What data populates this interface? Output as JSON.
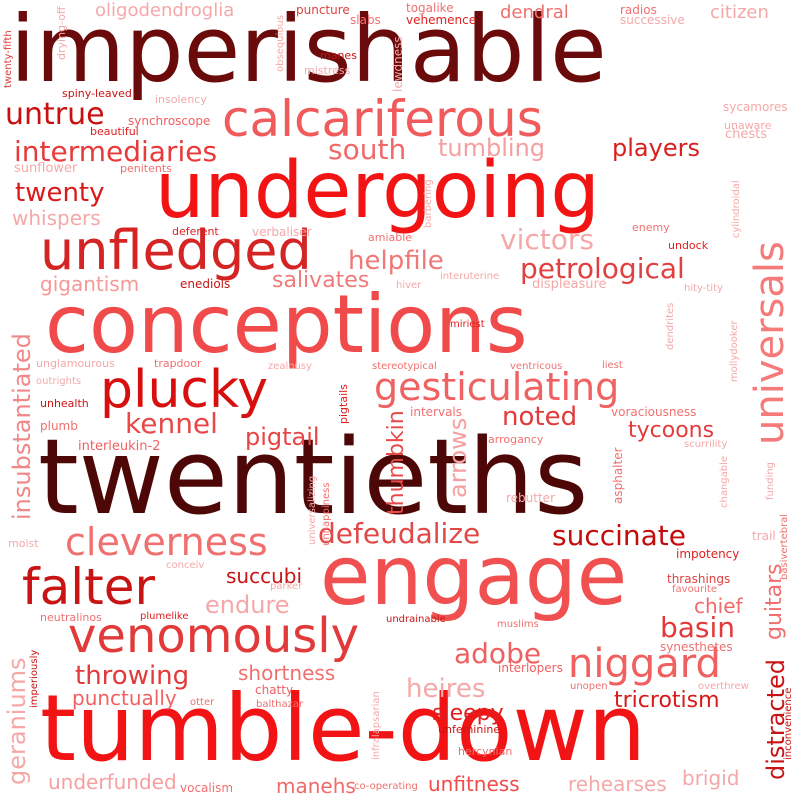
{
  "words": [
    {
      "text": "imperishable",
      "color": "#6b0a0a"
    },
    {
      "text": "twentieths",
      "color": "#4d0707"
    },
    {
      "text": "conceptions",
      "color": "#f04a4a"
    },
    {
      "text": "tumble-down",
      "color": "#f21414"
    },
    {
      "text": "undergoing",
      "color": "#f21414"
    },
    {
      "text": "engage",
      "color": "#f05050"
    },
    {
      "text": "calcariferous",
      "color": "#f05a5a"
    },
    {
      "text": "unfledged",
      "color": "#d42424"
    },
    {
      "text": "plucky",
      "color": "#d80f0f"
    },
    {
      "text": "gesticulating",
      "color": "#f06262"
    },
    {
      "text": "universals",
      "color": "#f57a7a"
    },
    {
      "text": "venomously",
      "color": "#e23a3a"
    },
    {
      "text": "niggard",
      "color": "#f06060"
    },
    {
      "text": "falter",
      "color": "#c81414"
    },
    {
      "text": "cleverness",
      "color": "#f07070"
    },
    {
      "text": "defeudalize",
      "color": "#e24848"
    },
    {
      "text": "succinate",
      "color": "#c40c0c"
    },
    {
      "text": "insubstantiated",
      "color": "#f08888"
    },
    {
      "text": "petrological",
      "color": "#e04040"
    },
    {
      "text": "intermediaries",
      "color": "#e83a3a"
    },
    {
      "text": "untrue",
      "color": "#c81010"
    },
    {
      "text": "south",
      "color": "#f06a6a"
    },
    {
      "text": "tumbling",
      "color": "#f5a0a0"
    },
    {
      "text": "players",
      "color": "#d82020"
    },
    {
      "text": "twenty",
      "color": "#d81a1a"
    },
    {
      "text": "whispers",
      "color": "#f5a8a8"
    },
    {
      "text": "helpfile",
      "color": "#f07878"
    },
    {
      "text": "victors",
      "color": "#f5a8a8"
    },
    {
      "text": "salivates",
      "color": "#f07a7a"
    },
    {
      "text": "gigantism",
      "color": "#f59898"
    },
    {
      "text": "kennel",
      "color": "#e84848"
    },
    {
      "text": "noted",
      "color": "#e23a3a"
    },
    {
      "text": "pigtail",
      "color": "#e84444"
    },
    {
      "text": "tycoons",
      "color": "#e23c3c"
    },
    {
      "text": "arrows",
      "color": "#f5a0a0"
    },
    {
      "text": "thumbkin",
      "color": "#e84a4a"
    },
    {
      "text": "guitars",
      "color": "#f07070"
    },
    {
      "text": "distracted",
      "color": "#c81414"
    },
    {
      "text": "geraniums",
      "color": "#f5a8a8"
    },
    {
      "text": "throwing",
      "color": "#e23a3a"
    },
    {
      "text": "shortness",
      "color": "#f07070"
    },
    {
      "text": "heires",
      "color": "#f5a8a8"
    },
    {
      "text": "adobe",
      "color": "#f06060"
    },
    {
      "text": "basin",
      "color": "#e23a3a"
    },
    {
      "text": "chief",
      "color": "#f06a6a"
    },
    {
      "text": "endure",
      "color": "#f5a8a8"
    },
    {
      "text": "succubi",
      "color": "#c81414"
    },
    {
      "text": "sleepy",
      "color": "#e02020"
    },
    {
      "text": "tricrotism",
      "color": "#d81a1a"
    },
    {
      "text": "punctually",
      "color": "#f06262"
    },
    {
      "text": "underfunded",
      "color": "#f5a0a0"
    },
    {
      "text": "manehs",
      "color": "#f06a6a"
    },
    {
      "text": "unfitness",
      "color": "#f04a4a"
    },
    {
      "text": "rehearses",
      "color": "#f5a8a8"
    },
    {
      "text": "brigid",
      "color": "#f5a8a8"
    },
    {
      "text": "oligodendroglia",
      "color": "#f5a8a8"
    },
    {
      "text": "dendral",
      "color": "#f07070"
    },
    {
      "text": "citizen",
      "color": "#f5a8a8"
    },
    {
      "text": "drying-off",
      "color": "#f5a8a8"
    },
    {
      "text": "twenty-fifth",
      "color": "#e04040"
    },
    {
      "text": "puncture",
      "color": "#e04040"
    },
    {
      "text": "slabs",
      "color": "#f07070"
    },
    {
      "text": "togalike",
      "color": "#f07070"
    },
    {
      "text": "vehemence",
      "color": "#e02020"
    },
    {
      "text": "radios",
      "color": "#f07070"
    },
    {
      "text": "successive",
      "color": "#f5a8a8"
    },
    {
      "text": "lewdness",
      "color": "#f5a8a8"
    },
    {
      "text": "obsequious",
      "color": "#f5a8a8"
    },
    {
      "text": "manes",
      "color": "#c81414"
    },
    {
      "text": "mistress",
      "color": "#f5a8a8"
    },
    {
      "text": "spiny-leaved",
      "color": "#c81414"
    },
    {
      "text": "insolency",
      "color": "#f5a8a8"
    },
    {
      "text": "synchroscope",
      "color": "#f06060"
    },
    {
      "text": "beautiful",
      "color": "#e02020"
    },
    {
      "text": "sycamores",
      "color": "#f5a8a8"
    },
    {
      "text": "chests",
      "color": "#f5a8a8"
    },
    {
      "text": "unaware",
      "color": "#f5a8a8"
    },
    {
      "text": "sunflower",
      "color": "#f5a8a8"
    },
    {
      "text": "penitents",
      "color": "#f07070"
    },
    {
      "text": "cylindroidal",
      "color": "#f5a8a8"
    },
    {
      "text": "deferent",
      "color": "#e02020"
    },
    {
      "text": "verbaliser",
      "color": "#f5a8a8"
    },
    {
      "text": "amiable",
      "color": "#f07070"
    },
    {
      "text": "barbering",
      "color": "#f5a8a8"
    },
    {
      "text": "enemy",
      "color": "#f07070"
    },
    {
      "text": "undock",
      "color": "#e02020"
    },
    {
      "text": "enediols",
      "color": "#c81414"
    },
    {
      "text": "hiver",
      "color": "#f5a8a8"
    },
    {
      "text": "interuterine",
      "color": "#f5a8a8"
    },
    {
      "text": "displeasure",
      "color": "#f5a8a8"
    },
    {
      "text": "hity-tity",
      "color": "#f5a8a8"
    },
    {
      "text": "miriest",
      "color": "#e02020"
    },
    {
      "text": "dendrites",
      "color": "#f5a8a8"
    },
    {
      "text": "mollydooker",
      "color": "#f5a8a8"
    },
    {
      "text": "unglamourous",
      "color": "#f5a8a8"
    },
    {
      "text": "trapdoor",
      "color": "#f07070"
    },
    {
      "text": "zealousy",
      "color": "#f5a8a8"
    },
    {
      "text": "stereotypical",
      "color": "#f07070"
    },
    {
      "text": "ventricous",
      "color": "#f07070"
    },
    {
      "text": "liest",
      "color": "#f07070"
    },
    {
      "text": "outrights",
      "color": "#f5a8a8"
    },
    {
      "text": "unhealth",
      "color": "#c81414"
    },
    {
      "text": "pigtails",
      "color": "#e02020"
    },
    {
      "text": "intervals",
      "color": "#f07070"
    },
    {
      "text": "voraciousness",
      "color": "#f07070"
    },
    {
      "text": "plumb",
      "color": "#f07070"
    },
    {
      "text": "interleukin-2",
      "color": "#f06060"
    },
    {
      "text": "arrogancy",
      "color": "#f07070"
    },
    {
      "text": "scurrility",
      "color": "#f5a8a8"
    },
    {
      "text": "changable",
      "color": "#f5a8a8"
    },
    {
      "text": "funding",
      "color": "#f5a8a8"
    },
    {
      "text": "asphalter",
      "color": "#f07070"
    },
    {
      "text": "rebutter",
      "color": "#f5a8a8"
    },
    {
      "text": "universalizing",
      "color": "#f5a8a8"
    },
    {
      "text": "unhappiness",
      "color": "#f07070"
    },
    {
      "text": "moist",
      "color": "#f5a8a8"
    },
    {
      "text": "trail",
      "color": "#f5a8a8"
    },
    {
      "text": "basivertebral",
      "color": "#f07070"
    },
    {
      "text": "impotency",
      "color": "#e02020"
    },
    {
      "text": "conceiv",
      "color": "#f5a8a8"
    },
    {
      "text": "parker",
      "color": "#f5a8a8"
    },
    {
      "text": "thrashings",
      "color": "#e04040"
    },
    {
      "text": "favourite",
      "color": "#f07070"
    },
    {
      "text": "neutralinos",
      "color": "#f07070"
    },
    {
      "text": "plumelike",
      "color": "#e02020"
    },
    {
      "text": "undrainable",
      "color": "#c81414"
    },
    {
      "text": "muslims",
      "color": "#f07070"
    },
    {
      "text": "synesthetes",
      "color": "#f07070"
    },
    {
      "text": "imperiously",
      "color": "#c81414"
    },
    {
      "text": "chatty",
      "color": "#f06060"
    },
    {
      "text": "otter",
      "color": "#f07070"
    },
    {
      "text": "balthazar",
      "color": "#f07070"
    },
    {
      "text": "infralapsarian",
      "color": "#f5a8a8"
    },
    {
      "text": "interlopers",
      "color": "#f06060"
    },
    {
      "text": "unopen",
      "color": "#f07070"
    },
    {
      "text": "overthrew",
      "color": "#f5a8a8"
    },
    {
      "text": "inconvenience",
      "color": "#c81414"
    },
    {
      "text": "unfeminine",
      "color": "#c81414"
    },
    {
      "text": "hercynian",
      "color": "#f07070"
    },
    {
      "text": "vocalism",
      "color": "#f07070"
    },
    {
      "text": "co-operating",
      "color": "#f07070"
    }
  ]
}
